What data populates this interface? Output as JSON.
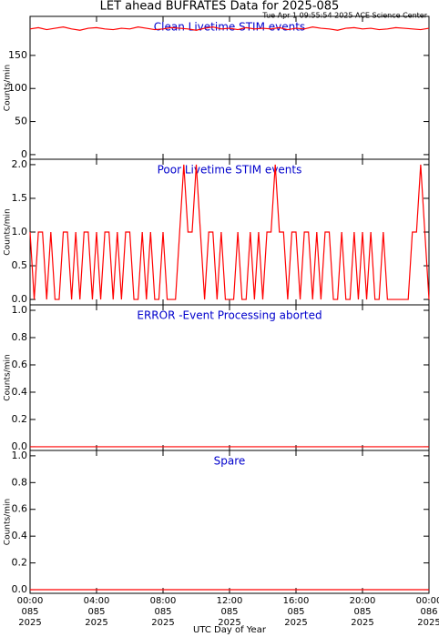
{
  "title": "LET ahead BUFRATES Data for 2025-085",
  "subtitle": "Tue Apr  1 09:55:54 2025 ACE Science Center",
  "xlabel": "UTC Day of Year",
  "chart_data": [
    {
      "type": "line",
      "title": "Clean Livetime STIM events",
      "ylabel": "Counts/min",
      "ylim": [
        -7,
        209
      ],
      "yticks": [
        0,
        50,
        100,
        150
      ],
      "xlim": [
        0,
        24
      ],
      "series": [
        {
          "color": "#ff0000",
          "x": [
            0,
            0.5,
            1,
            1.5,
            2,
            2.5,
            3,
            3.5,
            4,
            4.5,
            5,
            5.5,
            6,
            6.5,
            7,
            7.5,
            8,
            8.5,
            9,
            9.5,
            10,
            10.5,
            11,
            11.5,
            12,
            12.5,
            13,
            13.5,
            14,
            14.5,
            15,
            15.5,
            16,
            16.5,
            17,
            17.5,
            18,
            18.5,
            19,
            19.5,
            20,
            20.5,
            21,
            21.5,
            22,
            22.5,
            23,
            23.5,
            24
          ],
          "values": [
            190,
            192,
            189,
            191,
            193,
            190,
            188,
            191,
            192,
            190,
            189,
            191,
            190,
            193,
            191,
            189,
            190,
            192,
            191,
            190,
            188,
            191,
            193,
            190,
            191,
            189,
            192,
            190,
            191,
            190,
            192,
            189,
            191,
            190,
            193,
            191,
            190,
            188,
            191,
            192,
            190,
            191,
            189,
            190,
            192,
            191,
            190,
            189,
            191
          ]
        }
      ]
    },
    {
      "type": "line",
      "title": "Poor Livetime STIM events",
      "ylabel": "Counts/min",
      "ylim": [
        -0.08,
        2.08
      ],
      "yticks": [
        {
          "value": 0,
          "label": "0.0"
        },
        {
          "value": 0.5,
          "label": "0.5"
        },
        {
          "value": 1,
          "label": "1.0"
        },
        {
          "value": 1.5,
          "label": "1.5"
        },
        {
          "value": 2,
          "label": "2.0"
        }
      ],
      "xlim": [
        0,
        24
      ],
      "series": [
        {
          "color": "#ff0000",
          "x": [
            0,
            0.25,
            0.5,
            0.75,
            1,
            1.25,
            1.5,
            1.75,
            2,
            2.25,
            2.5,
            2.75,
            3,
            3.25,
            3.5,
            3.75,
            4,
            4.25,
            4.5,
            4.75,
            5,
            5.25,
            5.5,
            5.75,
            6,
            6.25,
            6.5,
            6.75,
            7,
            7.25,
            7.5,
            7.75,
            8,
            8.25,
            8.5,
            8.75,
            9,
            9.25,
            9.5,
            9.75,
            10,
            10.25,
            10.5,
            10.75,
            11,
            11.25,
            11.5,
            11.75,
            12,
            12.25,
            12.5,
            12.75,
            13,
            13.25,
            13.5,
            13.75,
            14,
            14.25,
            14.5,
            14.75,
            15,
            15.25,
            15.5,
            15.75,
            16,
            16.25,
            16.5,
            16.75,
            17,
            17.25,
            17.5,
            17.75,
            18,
            18.25,
            18.5,
            18.75,
            19,
            19.25,
            19.5,
            19.75,
            20,
            20.25,
            20.5,
            20.75,
            21,
            21.25,
            21.5,
            21.75,
            22,
            22.25,
            22.5,
            22.75,
            23,
            23.25,
            23.5,
            23.75,
            24
          ],
          "values": [
            1,
            0,
            1,
            1,
            0,
            1,
            0,
            0,
            1,
            1,
            0,
            1,
            0,
            1,
            1,
            0,
            1,
            0,
            1,
            1,
            0,
            1,
            0,
            1,
            1,
            0,
            0,
            1,
            0,
            1,
            0,
            0,
            1,
            0,
            0,
            0,
            1,
            2,
            1,
            1,
            2,
            1,
            0,
            1,
            1,
            0,
            1,
            0,
            0,
            0,
            1,
            0,
            0,
            1,
            0,
            1,
            0,
            1,
            1,
            2,
            1,
            1,
            0,
            1,
            1,
            0,
            1,
            1,
            0,
            1,
            0,
            1,
            1,
            0,
            0,
            1,
            0,
            0,
            1,
            0,
            1,
            0,
            1,
            0,
            0,
            1,
            0,
            0,
            0,
            0,
            0,
            0,
            1,
            1,
            2,
            1,
            0
          ]
        }
      ]
    },
    {
      "type": "line",
      "title": "ERROR -Event Processing aborted",
      "ylabel": "Counts/min",
      "ylim": [
        -0.027,
        1.04
      ],
      "yticks": [
        {
          "value": 0,
          "label": "0.0"
        },
        {
          "value": 0.2,
          "label": "0.2"
        },
        {
          "value": 0.4,
          "label": "0.4"
        },
        {
          "value": 0.6,
          "label": "0.6"
        },
        {
          "value": 0.8,
          "label": "0.8"
        },
        {
          "value": 1,
          "label": "1.0"
        }
      ],
      "xlim": [
        0,
        24
      ],
      "series": [
        {
          "color": "#ff0000",
          "x": [
            0,
            24
          ],
          "values": [
            0,
            0
          ]
        }
      ]
    },
    {
      "type": "line",
      "title": "Spare",
      "ylabel": "Counts/min",
      "ylim": [
        -0.027,
        1.04
      ],
      "yticks": [
        {
          "value": 0,
          "label": "0.0"
        },
        {
          "value": 0.2,
          "label": "0.2"
        },
        {
          "value": 0.4,
          "label": "0.4"
        },
        {
          "value": 0.6,
          "label": "0.6"
        },
        {
          "value": 0.8,
          "label": "0.8"
        },
        {
          "value": 1,
          "label": "1.0"
        }
      ],
      "xlim": [
        0,
        24
      ],
      "xticks": [
        {
          "value": 0,
          "label": [
            "00:00",
            "085",
            "2025"
          ]
        },
        {
          "value": 4,
          "label": [
            "04:00",
            "085",
            "2025"
          ]
        },
        {
          "value": 8,
          "label": [
            "08:00",
            "085",
            "2025"
          ]
        },
        {
          "value": 12,
          "label": [
            "12:00",
            "085",
            "2025"
          ]
        },
        {
          "value": 16,
          "label": [
            "16:00",
            "085",
            "2025"
          ]
        },
        {
          "value": 20,
          "label": [
            "20:00",
            "085",
            "2025"
          ]
        },
        {
          "value": 24,
          "label": [
            "00:00",
            "086",
            "2025"
          ]
        }
      ],
      "series": [
        {
          "color": "#ff0000",
          "x": [
            0,
            24
          ],
          "values": [
            0,
            0
          ]
        }
      ]
    }
  ]
}
